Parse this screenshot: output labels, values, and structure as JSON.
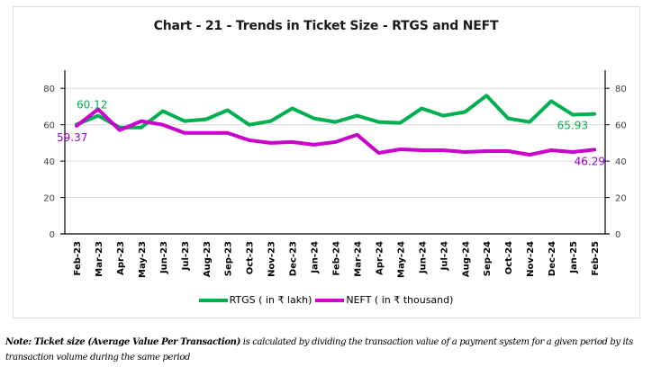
{
  "chart_data": {
    "type": "line",
    "title": "Chart - 21 - Trends in Ticket Size - RTGS and NEFT",
    "xlabel": "",
    "ylabel": "",
    "y2label": "",
    "ylim": [
      0,
      90
    ],
    "y2lim": [
      0,
      90
    ],
    "yticks": [
      0,
      20,
      40,
      60,
      80
    ],
    "y2ticks": [
      0,
      20,
      40,
      60,
      80
    ],
    "grid": true,
    "legend_position": "bottom",
    "categories": [
      "Feb-23",
      "Mar-23",
      "Apr-23",
      "May-23",
      "Jun-23",
      "Jul-23",
      "Aug-23",
      "Sep-23",
      "Oct-23",
      "Nov-23",
      "Dec-23",
      "Jan-24",
      "Feb-24",
      "Mar-24",
      "Apr-24",
      "May-24",
      "Jun-24",
      "Jul-24",
      "Aug-24",
      "Sep-24",
      "Oct-24",
      "Nov-24",
      "Dec-24",
      "Jan-25",
      "Feb-25"
    ],
    "series": [
      {
        "name": "RTGS ( in ₹ lakh)",
        "color": "#00b050",
        "axis": "left",
        "values": [
          60.12,
          65,
          58.5,
          58.5,
          67.5,
          62,
          63,
          68,
          60,
          62,
          69,
          63.5,
          61.5,
          65,
          61.5,
          61,
          69,
          65,
          67,
          76,
          63.5,
          61.5,
          73,
          65.5,
          65.93
        ],
        "data_labels": [
          {
            "index": 0,
            "text": "60.12"
          },
          {
            "index": 24,
            "text": "65.93"
          }
        ]
      },
      {
        "name": "NEFT ( in ₹ thousand)",
        "color": "#cc00cc",
        "axis": "right",
        "values": [
          59.37,
          68.5,
          57,
          62,
          60,
          55.5,
          55.5,
          55.5,
          51.5,
          50,
          50.5,
          49,
          50.5,
          54.5,
          44.5,
          46.5,
          46,
          46,
          45,
          45.5,
          45.5,
          43.5,
          46,
          45,
          46.29
        ],
        "data_labels": [
          {
            "index": 0,
            "text": "59.37"
          },
          {
            "index": 24,
            "text": "46.29"
          }
        ]
      }
    ]
  },
  "note": {
    "lead": "Note: Ticket size (Average Value Per Transaction)",
    "body": " is calculated by dividing the transaction value of a payment system for a given period by its transaction volume during the same period"
  },
  "colors": {
    "rtgs": "#00b050",
    "neft": "#cc00cc",
    "grid": "#d9d9d9",
    "axis": "#000000"
  }
}
